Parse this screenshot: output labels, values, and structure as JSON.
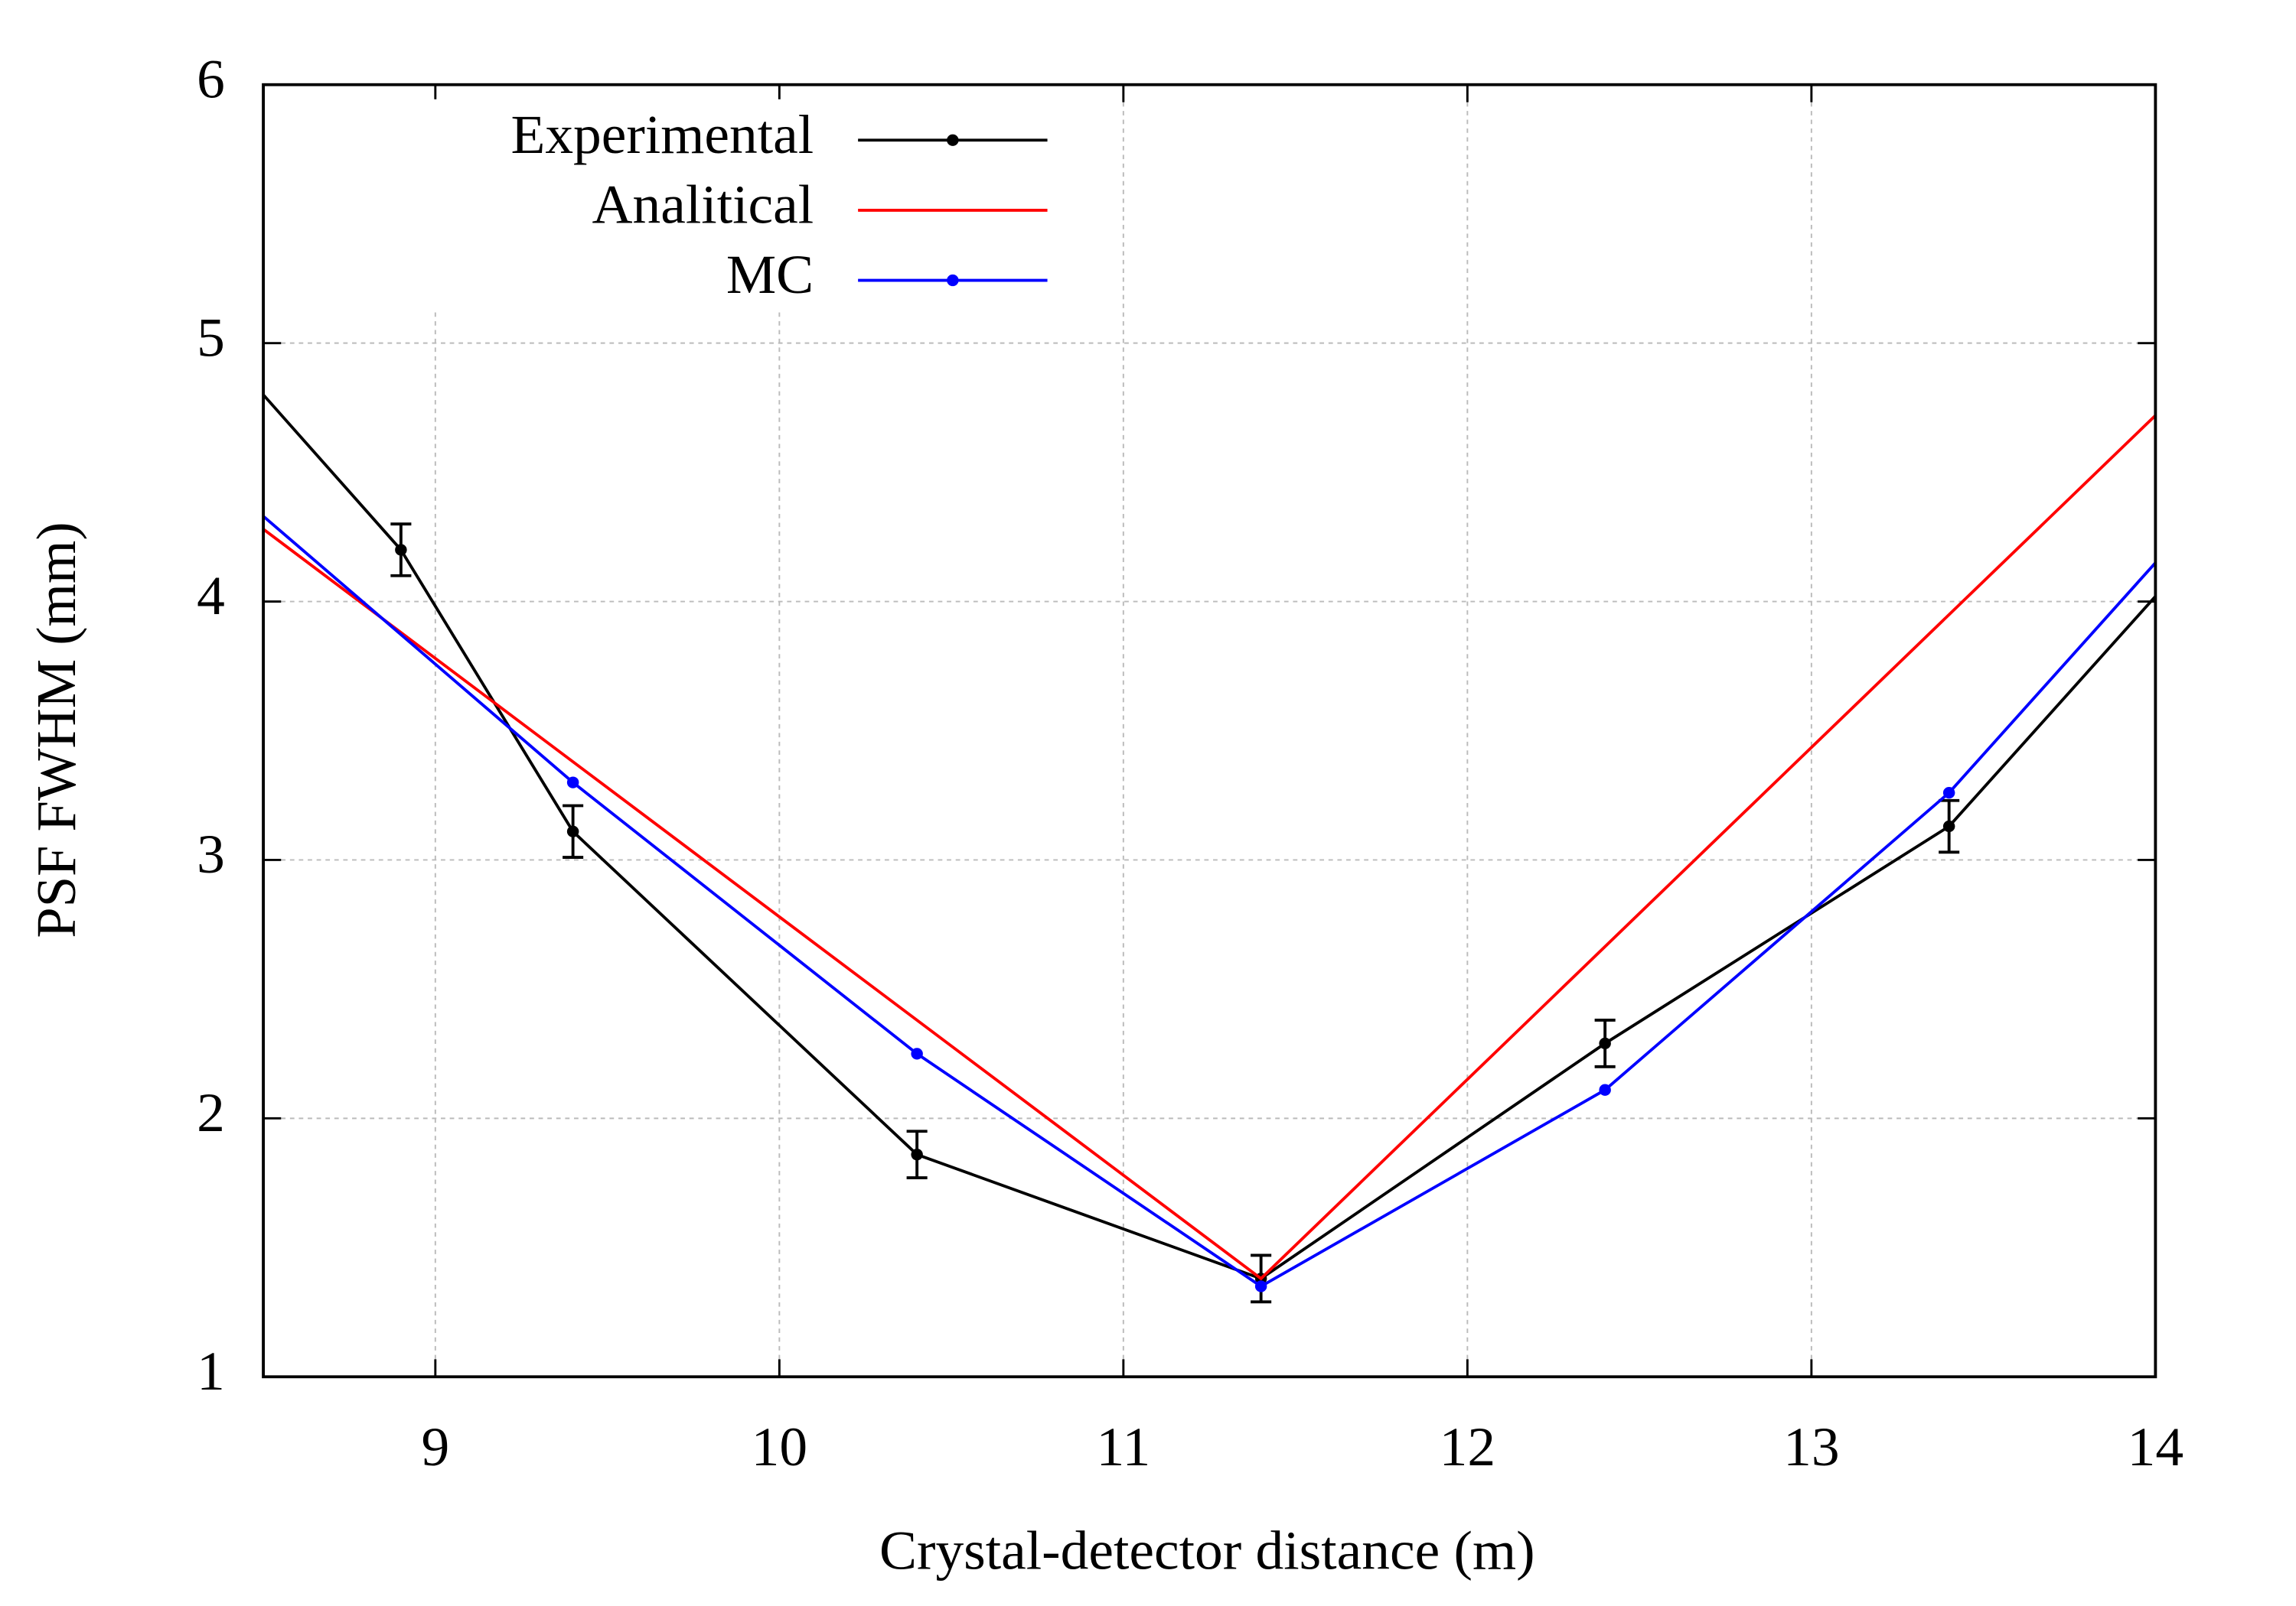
{
  "chart_data": {
    "type": "line",
    "xlabel": "Crystal-detector distance (m)",
    "ylabel": "PSF FWHM  (mm)",
    "xlim": [
      8.5,
      14
    ],
    "xticks": [
      9,
      10,
      11,
      12,
      13,
      14
    ],
    "ylim": [
      1,
      6
    ],
    "yticks": [
      1,
      2,
      3,
      4,
      5,
      6
    ],
    "grid": true,
    "legend": "upper left",
    "series": [
      {
        "name": "Experimental",
        "color": "#000000",
        "x": [
          8.5,
          8.9,
          9.4,
          10.4,
          11.4,
          12.4,
          13.4,
          14
        ],
        "values": [
          4.8,
          4.2,
          3.11,
          1.86,
          1.38,
          2.29,
          3.13,
          4.02
        ],
        "errors": [
          null,
          0.1,
          0.1,
          0.09,
          0.09,
          0.09,
          0.1,
          null
        ]
      },
      {
        "name": "Analitical",
        "color": "#ff0000",
        "x": [
          8.5,
          11.4,
          14
        ],
        "values": [
          4.28,
          1.38,
          4.72
        ]
      },
      {
        "name": "MC",
        "color": "#0000ff",
        "x": [
          8.5,
          9.4,
          10.4,
          11.4,
          12.4,
          13.4,
          14
        ],
        "values": [
          4.33,
          3.3,
          2.25,
          1.35,
          2.11,
          3.26,
          4.15
        ]
      }
    ]
  }
}
